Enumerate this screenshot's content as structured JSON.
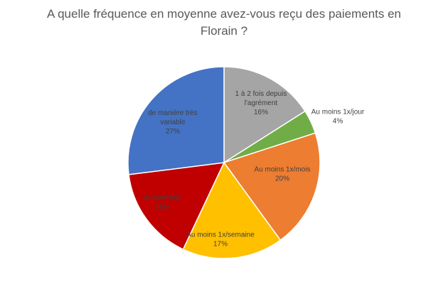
{
  "chart_data": {
    "type": "pie",
    "title_lines": [
      "A quelle fréquence en moyenne avez-vous reçu des paiements en",
      "Florain ?"
    ],
    "slices": [
      {
        "name": "1 à 2 fois depuis l'agrément",
        "label_lines": [
          "1 à 2 fois depuis",
          "l'agrément"
        ],
        "value": 16,
        "pct_label": "16%",
        "color": "#a5a5a5",
        "label_color": "#404040"
      },
      {
        "name": "Au moins 1x/jour",
        "label_lines": [
          "Au moins 1x/jour"
        ],
        "value": 4,
        "pct_label": "4%",
        "color": "#70ad47",
        "label_color": "#404040"
      },
      {
        "name": "Au moins 1x/mois",
        "label_lines": [
          "Au moins 1x/mois"
        ],
        "value": 20,
        "pct_label": "20%",
        "color": "#ed7d31",
        "label_color": "#404040"
      },
      {
        "name": "Au moins 1x/semaine",
        "label_lines": [
          "Au moins 1x/semaine"
        ],
        "value": 17,
        "pct_label": "17%",
        "color": "#ffc000",
        "label_color": "#404040"
      },
      {
        "name": "Aucune fois",
        "label_lines": [
          "Aucune fois"
        ],
        "value": 16,
        "pct_label": "16%",
        "color": "#c00000",
        "label_color": "#404040"
      },
      {
        "name": "de manière très variable",
        "label_lines": [
          "de manière très",
          "variable"
        ],
        "value": 27,
        "pct_label": "27%",
        "color": "#4472c4",
        "label_color": "#404040"
      }
    ]
  }
}
